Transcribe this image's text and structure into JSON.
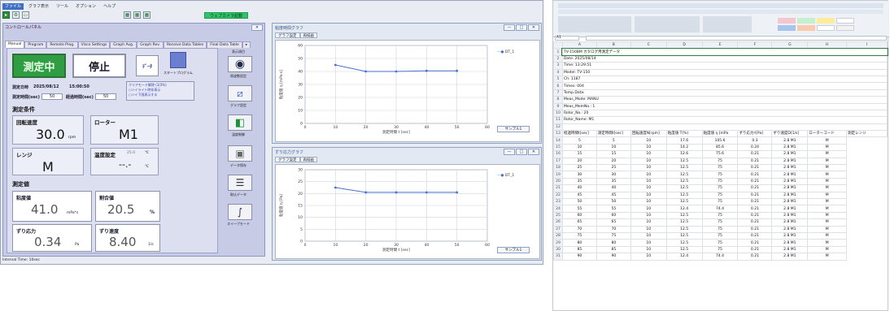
{
  "app": {
    "menu": [
      "ファイル",
      "グラフ表示",
      "ツール",
      "オプション",
      "ヘルプ"
    ],
    "green_button": "ウェブカメラ起動",
    "panel_title": "コントロールパネル",
    "tabs": [
      "Manual",
      "Program",
      "Remote Prog.",
      "Visco Settings",
      "Graph Avg.",
      "Graph Rev.",
      "Receive Data Tables",
      "Final Data Table",
      "▸"
    ],
    "start_label": "測定中",
    "stop_label": "停止",
    "data_clear_label": "データ\nクリア",
    "data_clear_symbol": "ﾃﾞｰﾀ",
    "start_program_label": "スタートプログラム",
    "measure_date_label": "測定日時",
    "measure_date_value": "2025/08/12",
    "measure_time_value": "15:00:50",
    "interval_label": "測定時間(sec)",
    "interval_value": "50",
    "elapsed_label": "経過時間(sec)",
    "elapsed_value": "50",
    "range_box": [
      "クリアモード解除 (3/3%)",
      "○ハイライト時非表示",
      "○ハイ下限表示する"
    ],
    "conditions_title": "測定条件",
    "speed_label": "回転速度",
    "speed_value": "30.0",
    "speed_unit": "rpm",
    "rotor_label": "ローター",
    "rotor_value": "M1",
    "range_label": "レンジ",
    "range_value": "M",
    "temp_label": "温度設定",
    "temp_set": "25.0",
    "temp_unit": "℃",
    "temp_value": "--.-",
    "measured_title": "測定値",
    "viscosity_label": "粘度値",
    "viscosity_value": "41.0",
    "viscosity_unit": "mPa*s",
    "torque_label": "割合値",
    "torque_value": "20.5",
    "torque_unit": "%",
    "stress_label": "ずり応力",
    "stress_value": "0.34",
    "stress_unit": "Pa",
    "rate_label": "ずり速度",
    "rate_value": "8.40",
    "rate_unit": "1/s",
    "side_buttons": [
      "表示項目",
      "周波数設定",
      "グラフ設定",
      "温度制御",
      "データ保存",
      "取込データ",
      "スイープモード"
    ],
    "status_text": "Interval Time: 10sec",
    "colors": {
      "start_green": "#2f9e42",
      "panel_bg": "#c8cbe6",
      "series_blue": "#4b6fd1"
    }
  },
  "chart1": {
    "window_title": "粘度時間グラフ",
    "tabs": [
      "グラフ設定",
      "再描画"
    ],
    "legend": "DT_1",
    "ylabel": "粘度値 η  [mPa·s]",
    "xlabel": "測定時間 t [sec]",
    "sample_btn": "サンプル1",
    "win_buttons": [
      "—",
      "□",
      "✕"
    ]
  },
  "chart2": {
    "window_title": "ずり応力グラフ",
    "tabs": [
      "グラフ設定",
      "再描画"
    ],
    "legend": "DT_1",
    "ylabel": "粘度値 η  [Pa]",
    "xlabel": "測定時間 t [sec]",
    "sample_btn": "サンプル1",
    "win_buttons": [
      "—",
      "□",
      "✕"
    ]
  },
  "chart_data": [
    {
      "type": "line",
      "x": [
        10,
        20,
        30,
        40,
        50
      ],
      "series": [
        {
          "name": "DT_1",
          "values": [
            45,
            40,
            40,
            40.5,
            40.5
          ]
        }
      ],
      "xlim": [
        0,
        60
      ],
      "ylim": [
        0,
        60
      ],
      "xticks": [
        0,
        10,
        20,
        30,
        40,
        50,
        60
      ],
      "yticks": [
        0,
        10,
        20,
        30,
        40,
        50,
        60
      ],
      "xlabel": "測定時間 t [sec]",
      "ylabel": "粘度値 η  [mPa·s]",
      "grid": true,
      "legend": "top-right"
    },
    {
      "type": "line",
      "x": [
        10,
        20,
        30,
        40,
        50
      ],
      "series": [
        {
          "name": "DT_1",
          "values": [
            22.5,
            20.5,
            20.5,
            20.5,
            20.5
          ]
        }
      ],
      "xlim": [
        0,
        60
      ],
      "ylim": [
        0,
        30
      ],
      "xticks": [
        0,
        10,
        20,
        30,
        40,
        50,
        60
      ],
      "yticks": [
        0,
        5,
        10,
        15,
        20,
        25,
        30
      ],
      "xlabel": "測定時間 t [sec]",
      "ylabel": "粘度値 η  [Pa]",
      "grid": true,
      "legend": "top-right"
    }
  ],
  "sheet": {
    "columns": [
      "A",
      "B",
      "C",
      "D",
      "E",
      "F",
      "G",
      "H",
      "I"
    ],
    "cell_ref": "A1",
    "info_rows": [
      {
        "n": "1",
        "text": "TV-150BM カタログ用測定データ"
      },
      {
        "n": "2",
        "text": "Date: 2025/08/14"
      },
      {
        "n": "3",
        "text": "Time: 13:29:51"
      },
      {
        "n": "4",
        "text": "Model: TV-150"
      },
      {
        "n": "5",
        "text": "Ch: 1187"
      },
      {
        "n": "6",
        "text": "Times: 004"
      },
      {
        "n": "7",
        "text": "Temp.Data:"
      },
      {
        "n": "8",
        "text": "Meas_Mode: MANU"
      },
      {
        "n": "9",
        "text": "Meas_MemNo.: 1"
      },
      {
        "n": "10",
        "text": "Rotor_No.: 20"
      },
      {
        "n": "11",
        "text": "Rotor_Name: M1"
      },
      {
        "n": "12",
        "text": ""
      }
    ],
    "header_row_num": "13",
    "headers": [
      "経過時間t[sec]",
      "測定時間t[sec]",
      "回転速度N[rpm]",
      "粘度値 T(%)",
      "粘度値 η [mPa",
      "ずり応力τ[Pa]",
      "ずり速度D[1/s]",
      "ローターコード",
      "測定レンジ"
    ],
    "rows": [
      [
        "14",
        "5",
        "5",
        "10",
        "17.6",
        "105.6",
        "0.3",
        "2.8 M1",
        "M"
      ],
      [
        "15",
        "10",
        "10",
        "10",
        "14.2",
        "85.6",
        "0.24",
        "2.8 M1",
        "M"
      ],
      [
        "16",
        "15",
        "15",
        "10",
        "12.6",
        "75.6",
        "0.21",
        "2.8 M1",
        "M"
      ],
      [
        "17",
        "20",
        "20",
        "10",
        "12.5",
        "75",
        "0.21",
        "2.8 M1",
        "M"
      ],
      [
        "18",
        "25",
        "25",
        "10",
        "12.5",
        "75",
        "0.21",
        "2.8 M1",
        "M"
      ],
      [
        "19",
        "30",
        "30",
        "10",
        "12.5",
        "75",
        "0.21",
        "2.8 M1",
        "M"
      ],
      [
        "20",
        "35",
        "35",
        "10",
        "12.5",
        "75",
        "0.21",
        "2.8 M1",
        "M"
      ],
      [
        "21",
        "40",
        "40",
        "10",
        "12.5",
        "75",
        "0.21",
        "2.8 M1",
        "M"
      ],
      [
        "22",
        "45",
        "45",
        "10",
        "12.5",
        "75",
        "0.21",
        "2.8 M1",
        "M"
      ],
      [
        "23",
        "50",
        "50",
        "10",
        "12.5",
        "75",
        "0.21",
        "2.8 M1",
        "M"
      ],
      [
        "24",
        "55",
        "55",
        "10",
        "12.4",
        "74.4",
        "0.21",
        "2.8 M1",
        "M"
      ],
      [
        "25",
        "60",
        "60",
        "10",
        "12.5",
        "75",
        "0.21",
        "2.8 M1",
        "M"
      ],
      [
        "26",
        "65",
        "65",
        "10",
        "12.5",
        "75",
        "0.21",
        "2.8 M1",
        "M"
      ],
      [
        "27",
        "70",
        "70",
        "10",
        "12.5",
        "75",
        "0.21",
        "2.8 M1",
        "M"
      ],
      [
        "28",
        "75",
        "75",
        "10",
        "12.5",
        "75",
        "0.21",
        "2.8 M1",
        "M"
      ],
      [
        "29",
        "80",
        "80",
        "10",
        "12.5",
        "75",
        "0.21",
        "2.8 M1",
        "M"
      ],
      [
        "30",
        "85",
        "85",
        "10",
        "12.5",
        "75",
        "0.21",
        "2.8 M1",
        "M"
      ],
      [
        "31",
        "90",
        "90",
        "10",
        "12.4",
        "74.4",
        "0.21",
        "2.8 M1",
        "M"
      ]
    ]
  }
}
